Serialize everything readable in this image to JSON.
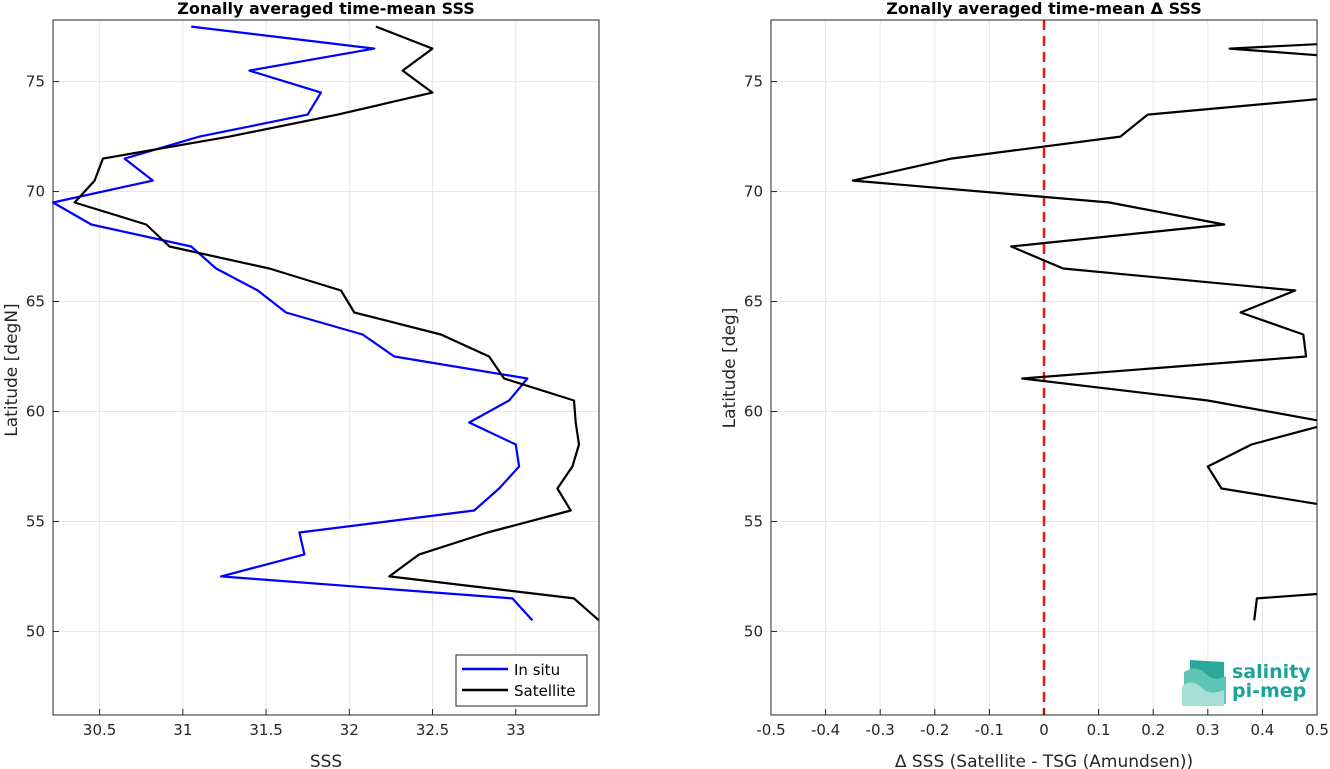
{
  "chart_data": [
    {
      "type": "line",
      "title": "Zonally averaged time-mean SSS",
      "xlabel": "SSS",
      "ylabel": "Latitude [degN]",
      "xlim": [
        30.22,
        33.5
      ],
      "ylim": [
        46.2,
        77.8
      ],
      "xticks": [
        30.5,
        31,
        31.5,
        32,
        32.5,
        33
      ],
      "yticks": [
        50,
        55,
        60,
        65,
        70,
        75
      ],
      "grid": true,
      "legend": "bottom-right",
      "series": [
        {
          "name": "In situ",
          "color": "#0000ff",
          "points": [
            [
              31.05,
              77.5
            ],
            [
              32.15,
              76.5
            ],
            [
              31.4,
              75.5
            ],
            [
              31.83,
              74.5
            ],
            [
              31.75,
              73.5
            ],
            [
              31.1,
              72.5
            ],
            [
              30.65,
              71.5
            ],
            [
              30.82,
              70.5
            ],
            [
              30.22,
              69.5
            ],
            [
              30.45,
              68.5
            ],
            [
              31.05,
              67.5
            ],
            [
              31.2,
              66.5
            ],
            [
              31.45,
              65.5
            ],
            [
              31.62,
              64.5
            ],
            [
              32.08,
              63.5
            ],
            [
              32.27,
              62.5
            ],
            [
              33.07,
              61.5
            ],
            [
              32.96,
              60.5
            ],
            [
              32.72,
              59.5
            ],
            [
              33.0,
              58.5
            ],
            [
              33.02,
              57.5
            ],
            [
              32.9,
              56.5
            ],
            [
              32.75,
              55.5
            ],
            [
              31.7,
              54.5
            ],
            [
              31.73,
              53.5
            ],
            [
              31.23,
              52.5
            ],
            [
              32.98,
              51.5
            ],
            [
              33.1,
              50.5
            ]
          ]
        },
        {
          "name": "Satellite",
          "color": "#000000",
          "points": [
            [
              32.16,
              77.5
            ],
            [
              32.5,
              76.5
            ],
            [
              32.32,
              75.5
            ],
            [
              32.5,
              74.5
            ],
            [
              31.93,
              73.5
            ],
            [
              31.28,
              72.5
            ],
            [
              30.52,
              71.5
            ],
            [
              30.47,
              70.5
            ],
            [
              30.35,
              69.5
            ],
            [
              30.78,
              68.5
            ],
            [
              30.92,
              67.5
            ],
            [
              31.52,
              66.5
            ],
            [
              31.95,
              65.5
            ],
            [
              32.03,
              64.5
            ],
            [
              32.55,
              63.5
            ],
            [
              32.84,
              62.5
            ],
            [
              32.93,
              61.5
            ],
            [
              33.35,
              60.5
            ],
            [
              33.36,
              59.5
            ],
            [
              33.38,
              58.5
            ],
            [
              33.34,
              57.5
            ],
            [
              33.25,
              56.5
            ],
            [
              33.33,
              55.5
            ],
            [
              32.83,
              54.5
            ],
            [
              32.42,
              53.5
            ],
            [
              32.24,
              52.5
            ],
            [
              33.35,
              51.5
            ],
            [
              33.5,
              50.5
            ]
          ]
        }
      ]
    },
    {
      "type": "line",
      "title": "Zonally averaged time-mean Δ SSS",
      "xlabel": "Δ SSS (Satellite - TSG (Amundsen))",
      "ylabel": "Latitude [deg]",
      "xlim": [
        -0.5,
        0.5
      ],
      "ylim": [
        46.2,
        77.8
      ],
      "xticks": [
        -0.5,
        -0.4,
        -0.3,
        -0.2,
        -0.1,
        0,
        0.1,
        0.2,
        0.3,
        0.4,
        0.5
      ],
      "xticklabels": [
        "-0.5",
        "-0.4",
        "-0.3",
        "-0.2",
        "-0.1",
        "0",
        "0.1",
        "0.2",
        "0.3",
        "0.4",
        "0.5"
      ],
      "yticks": [
        50,
        55,
        60,
        65,
        70,
        75
      ],
      "grid": true,
      "reference_line": {
        "x": 0,
        "color": "#e41a1c",
        "style": "dashed"
      },
      "series": [
        {
          "color": "#000000",
          "points": [
            [
              0.5,
              76.7
            ],
            [
              0.34,
              76.5
            ],
            [
              0.5,
              76.2
            ]
          ]
        },
        {
          "color": "#000000",
          "points": [
            [
              0.5,
              74.2
            ],
            [
              0.19,
              73.5
            ],
            [
              0.14,
              72.5
            ],
            [
              -0.17,
              71.5
            ],
            [
              -0.35,
              70.5
            ],
            [
              0.12,
              69.5
            ],
            [
              0.33,
              68.5
            ],
            [
              -0.06,
              67.5
            ],
            [
              0.035,
              66.5
            ],
            [
              0.46,
              65.5
            ],
            [
              0.36,
              64.5
            ],
            [
              0.475,
              63.5
            ],
            [
              0.48,
              62.5
            ],
            [
              -0.04,
              61.5
            ],
            [
              0.3,
              60.5
            ],
            [
              0.5,
              59.6
            ]
          ]
        },
        {
          "color": "#000000",
          "points": [
            [
              0.5,
              59.3
            ],
            [
              0.38,
              58.5
            ],
            [
              0.3,
              57.5
            ],
            [
              0.325,
              56.5
            ],
            [
              0.5,
              55.8
            ]
          ]
        },
        {
          "color": "#000000",
          "points": [
            [
              0.5,
              51.7
            ],
            [
              0.39,
              51.5
            ],
            [
              0.385,
              50.5
            ]
          ]
        }
      ]
    }
  ],
  "logo": {
    "line1": "salinity",
    "line2": "pi-mep",
    "color": "#1aa597"
  }
}
